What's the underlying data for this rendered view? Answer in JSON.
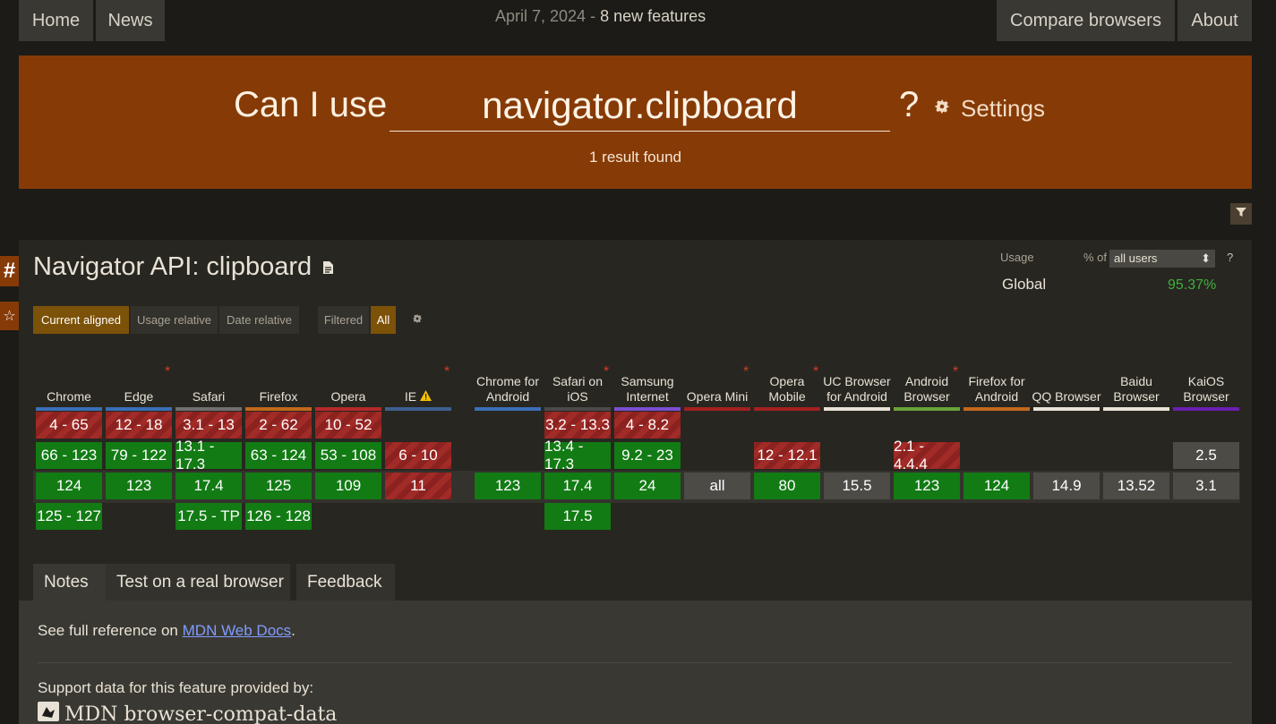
{
  "nav": {
    "home": "Home",
    "news": "News",
    "date": "April 7, 2024 -",
    "new_features": "8 new features",
    "compare": "Compare browsers",
    "about": "About"
  },
  "hero": {
    "can_i_use": "Can I use",
    "query": "navigator.clipboard",
    "qmark": "?",
    "settings": "Settings",
    "result": "1 result found"
  },
  "side": {
    "hash": "#",
    "star": "☆"
  },
  "feature": {
    "title": "Navigator API: clipboard",
    "usage_label": "Usage",
    "pct_of": "% of",
    "users_select": "all users",
    "help": "?",
    "global_label": "Global",
    "global_pct": "95.37%",
    "view_current": "Current aligned",
    "view_usage": "Usage relative",
    "view_date": "Date relative",
    "filtered": "Filtered",
    "all": "All"
  },
  "browsers": [
    {
      "name": "Chrome",
      "color": "#3b6fb6",
      "star": false,
      "warn": false,
      "cells": [
        {
          "v": "4 - 65",
          "s": "n"
        },
        {
          "v": "66 - 123",
          "s": "y"
        },
        {
          "v": "124",
          "s": "y"
        },
        {
          "v": "125 - 127",
          "s": "y"
        }
      ]
    },
    {
      "name": "Edge",
      "color": "#3b6fb6",
      "star": true,
      "warn": false,
      "cells": [
        {
          "v": "12 - 18",
          "s": "n"
        },
        {
          "v": "79 - 122",
          "s": "y"
        },
        {
          "v": "123",
          "s": "y"
        },
        null
      ]
    },
    {
      "name": "Safari",
      "color": "#707070",
      "star": false,
      "warn": false,
      "cells": [
        {
          "v": "3.1 - 13",
          "s": "n"
        },
        {
          "v": "13.1 - 17.3",
          "s": "y"
        },
        {
          "v": "17.4",
          "s": "y"
        },
        {
          "v": "17.5 - TP",
          "s": "y"
        }
      ]
    },
    {
      "name": "Firefox",
      "color": "#c2681c",
      "star": false,
      "warn": false,
      "cells": [
        {
          "v": "2 - 62",
          "s": "n"
        },
        {
          "v": "63 - 124",
          "s": "y"
        },
        {
          "v": "125",
          "s": "y"
        },
        {
          "v": "126 - 128",
          "s": "y"
        }
      ]
    },
    {
      "name": "Opera",
      "color": "#b52a2a",
      "star": false,
      "warn": false,
      "cells": [
        {
          "v": "10 - 52",
          "s": "n"
        },
        {
          "v": "53 - 108",
          "s": "y"
        },
        {
          "v": "109",
          "s": "y"
        },
        null
      ]
    },
    {
      "name": "IE",
      "color": "#3f5f90",
      "star": true,
      "warn": true,
      "cells": [
        null,
        {
          "v": "6 - 10",
          "s": "n"
        },
        {
          "v": "11",
          "s": "n"
        },
        null
      ]
    },
    {
      "name": "Chrome for Android",
      "color": "#3b6fb6",
      "star": false,
      "warn": false,
      "cells": [
        null,
        null,
        {
          "v": "123",
          "s": "y"
        },
        null
      ]
    },
    {
      "name": "Safari on iOS",
      "color": "#4a4a4a",
      "star": true,
      "warn": false,
      "cells": [
        {
          "v": "3.2 - 13.3",
          "s": "n"
        },
        {
          "v": "13.4 - 17.3",
          "s": "y"
        },
        {
          "v": "17.4",
          "s": "y"
        },
        {
          "v": "17.5",
          "s": "y"
        }
      ]
    },
    {
      "name": "Samsung Internet",
      "color": "#7a4fd0",
      "star": false,
      "warn": false,
      "cells": [
        {
          "v": "4 - 8.2",
          "s": "n"
        },
        {
          "v": "9.2 - 23",
          "s": "y"
        },
        {
          "v": "24",
          "s": "y"
        },
        null
      ]
    },
    {
      "name": "Opera Mini",
      "color": "#a32020",
      "star": true,
      "warn": false,
      "cells": [
        null,
        null,
        {
          "v": "all",
          "s": "u"
        },
        null
      ]
    },
    {
      "name": "Opera Mobile",
      "color": "#a32020",
      "star": true,
      "warn": false,
      "cells": [
        null,
        {
          "v": "12 - 12.1",
          "s": "n"
        },
        {
          "v": "80",
          "s": "y"
        },
        null
      ]
    },
    {
      "name": "UC Browser for Android",
      "color": "#e8e2d6",
      "star": false,
      "warn": false,
      "cells": [
        null,
        null,
        {
          "v": "15.5",
          "s": "u"
        },
        null
      ]
    },
    {
      "name": "Android Browser",
      "color": "#6aa33a",
      "star": true,
      "warn": false,
      "cells": [
        null,
        {
          "v": "2.1 - 4.4.4",
          "s": "n"
        },
        {
          "v": "123",
          "s": "y"
        },
        null
      ]
    },
    {
      "name": "Firefox for Android",
      "color": "#c2681c",
      "star": false,
      "warn": false,
      "cells": [
        null,
        null,
        {
          "v": "124",
          "s": "y"
        },
        null
      ]
    },
    {
      "name": "QQ Browser",
      "color": "#e8e2d6",
      "star": false,
      "warn": false,
      "cells": [
        null,
        null,
        {
          "v": "14.9",
          "s": "u"
        },
        null
      ]
    },
    {
      "name": "Baidu Browser",
      "color": "#e8e2d6",
      "star": false,
      "warn": false,
      "cells": [
        null,
        null,
        {
          "v": "13.52",
          "s": "u"
        },
        null
      ]
    },
    {
      "name": "KaiOS Browser",
      "color": "#6a1fb0",
      "star": false,
      "warn": false,
      "cells": [
        null,
        {
          "v": "2.5",
          "s": "u"
        },
        {
          "v": "3.1",
          "s": "u"
        },
        null
      ]
    }
  ],
  "tabs": {
    "notes": "Notes",
    "test": "Test on a real browser",
    "feedback": "Feedback"
  },
  "notes": {
    "prefix": "See full reference on",
    "link": "MDN Web Docs",
    "suffix": ".",
    "support": "Support data for this feature provided by:",
    "provider": "MDN browser-compat-data"
  }
}
